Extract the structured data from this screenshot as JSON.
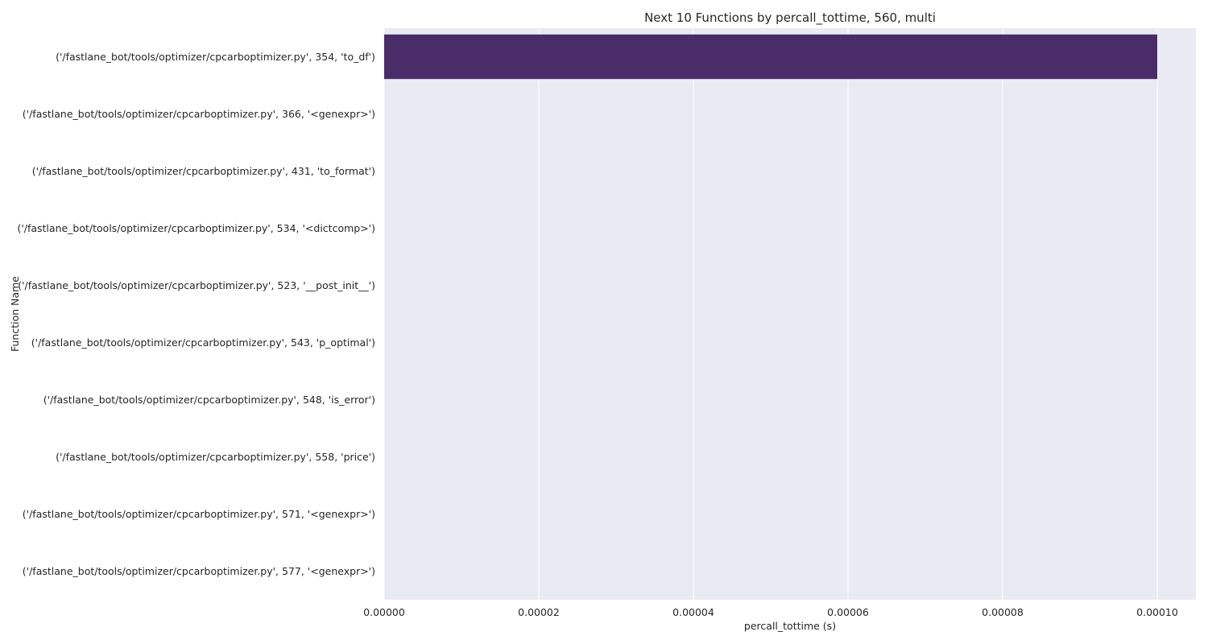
{
  "chart_data": {
    "type": "bar",
    "orientation": "horizontal",
    "title": "Next 10 Functions by percall_tottime, 560, multi",
    "xlabel": "percall_tottime (s)",
    "ylabel": "Function Name",
    "categories": [
      "('/fastlane_bot/tools/optimizer/cpcarboptimizer.py', 354, 'to_df')",
      "('/fastlane_bot/tools/optimizer/cpcarboptimizer.py', 366, '<genexpr>')",
      "('/fastlane_bot/tools/optimizer/cpcarboptimizer.py', 431, 'to_format')",
      "('/fastlane_bot/tools/optimizer/cpcarboptimizer.py', 534, '<dictcomp>')",
      "('/fastlane_bot/tools/optimizer/cpcarboptimizer.py', 523, '__post_init__')",
      "('/fastlane_bot/tools/optimizer/cpcarboptimizer.py', 543, 'p_optimal')",
      "('/fastlane_bot/tools/optimizer/cpcarboptimizer.py', 548, 'is_error')",
      "('/fastlane_bot/tools/optimizer/cpcarboptimizer.py', 558, 'price')",
      "('/fastlane_bot/tools/optimizer/cpcarboptimizer.py', 571, '<genexpr>')",
      "('/fastlane_bot/tools/optimizer/cpcarboptimizer.py', 577, '<genexpr>')"
    ],
    "values": [
      0.0001,
      0,
      0,
      0,
      0,
      0,
      0,
      0,
      0,
      0
    ],
    "xlim": [
      0,
      0.000105
    ],
    "xticks": [
      0,
      2e-05,
      4e-05,
      6e-05,
      8e-05,
      0.0001
    ],
    "xtick_labels": [
      "0.00000",
      "0.00002",
      "0.00004",
      "0.00006",
      "0.00008",
      "0.00010"
    ],
    "grid": true,
    "bar_color": "#4a2c69",
    "background_color": "#eaeaf2",
    "grid_color": "#ffffff"
  }
}
